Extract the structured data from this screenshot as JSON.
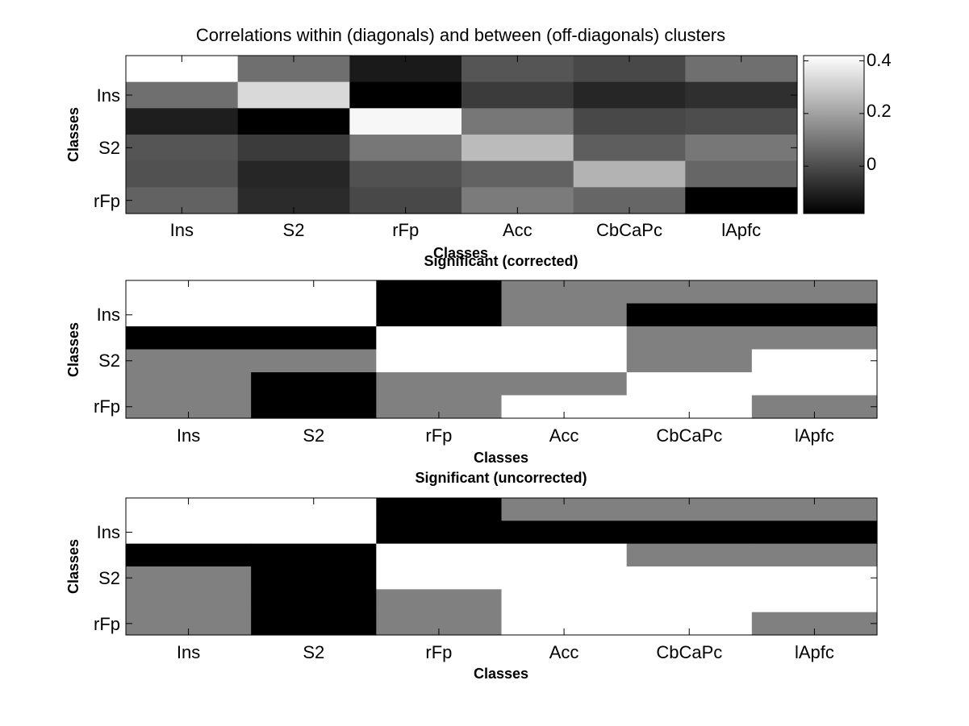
{
  "chart_data": [
    {
      "type": "heatmap",
      "title": "Correlations within (diagonals) and between (off-diagonals) clusters",
      "xlabel": "Classes",
      "ylabel": "Classes",
      "x_categories": [
        "Ins",
        "S2",
        "rFp",
        "Acc",
        "CbCaPc",
        "lApfc"
      ],
      "y_tick_labels": [
        "Ins",
        "S2",
        "rFp"
      ],
      "rows": 6,
      "cols": 6,
      "colormap": "gray",
      "clim": [
        -0.18,
        0.42
      ],
      "colorbar": {
        "ticks": [
          0.4,
          0.2,
          0
        ],
        "tick_labels": [
          "0.4",
          "0.2",
          "0"
        ]
      },
      "values": [
        [
          0.42,
          0.08,
          -0.12,
          0.02,
          -0.01,
          0.08
        ],
        [
          0.08,
          0.33,
          -0.18,
          -0.04,
          -0.09,
          -0.07
        ],
        [
          -0.11,
          -0.18,
          0.4,
          0.1,
          -0.01,
          0.0
        ],
        [
          0.02,
          -0.04,
          0.1,
          0.26,
          0.04,
          0.1
        ],
        [
          0.01,
          -0.09,
          0.01,
          0.05,
          0.24,
          0.06
        ],
        [
          0.05,
          -0.08,
          -0.01,
          0.11,
          0.06,
          -0.18
        ]
      ]
    },
    {
      "type": "heatmap",
      "title": "Significant (corrected)",
      "xlabel": "Classes",
      "ylabel": "Classes",
      "x_categories": [
        "Ins",
        "S2",
        "rFp",
        "Acc",
        "CbCaPc",
        "lApfc"
      ],
      "y_tick_labels": [
        "Ins",
        "S2",
        "rFp"
      ],
      "rows": 6,
      "cols": 6,
      "colormap": "gray",
      "levels": [
        -1,
        0,
        1
      ],
      "values": [
        [
          1,
          1,
          -1,
          0,
          0,
          0
        ],
        [
          1,
          1,
          -1,
          0,
          -1,
          -1
        ],
        [
          -1,
          -1,
          1,
          1,
          0,
          0
        ],
        [
          0,
          0,
          1,
          1,
          0,
          1
        ],
        [
          0,
          -1,
          0,
          0,
          1,
          1
        ],
        [
          0,
          -1,
          0,
          1,
          1,
          0
        ]
      ]
    },
    {
      "type": "heatmap",
      "title": "Significant (uncorrected)",
      "xlabel": "Classes",
      "ylabel": "Classes",
      "x_categories": [
        "Ins",
        "S2",
        "rFp",
        "Acc",
        "CbCaPc",
        "lApfc"
      ],
      "y_tick_labels": [
        "Ins",
        "S2",
        "rFp"
      ],
      "rows": 6,
      "cols": 6,
      "colormap": "gray",
      "levels": [
        -1,
        0,
        1
      ],
      "values": [
        [
          1,
          1,
          -1,
          0,
          0,
          0
        ],
        [
          1,
          1,
          -1,
          -1,
          -1,
          -1
        ],
        [
          -1,
          -1,
          1,
          1,
          0,
          0
        ],
        [
          0,
          -1,
          1,
          1,
          1,
          1
        ],
        [
          0,
          -1,
          0,
          1,
          1,
          1
        ],
        [
          0,
          -1,
          0,
          1,
          1,
          0
        ]
      ]
    }
  ]
}
